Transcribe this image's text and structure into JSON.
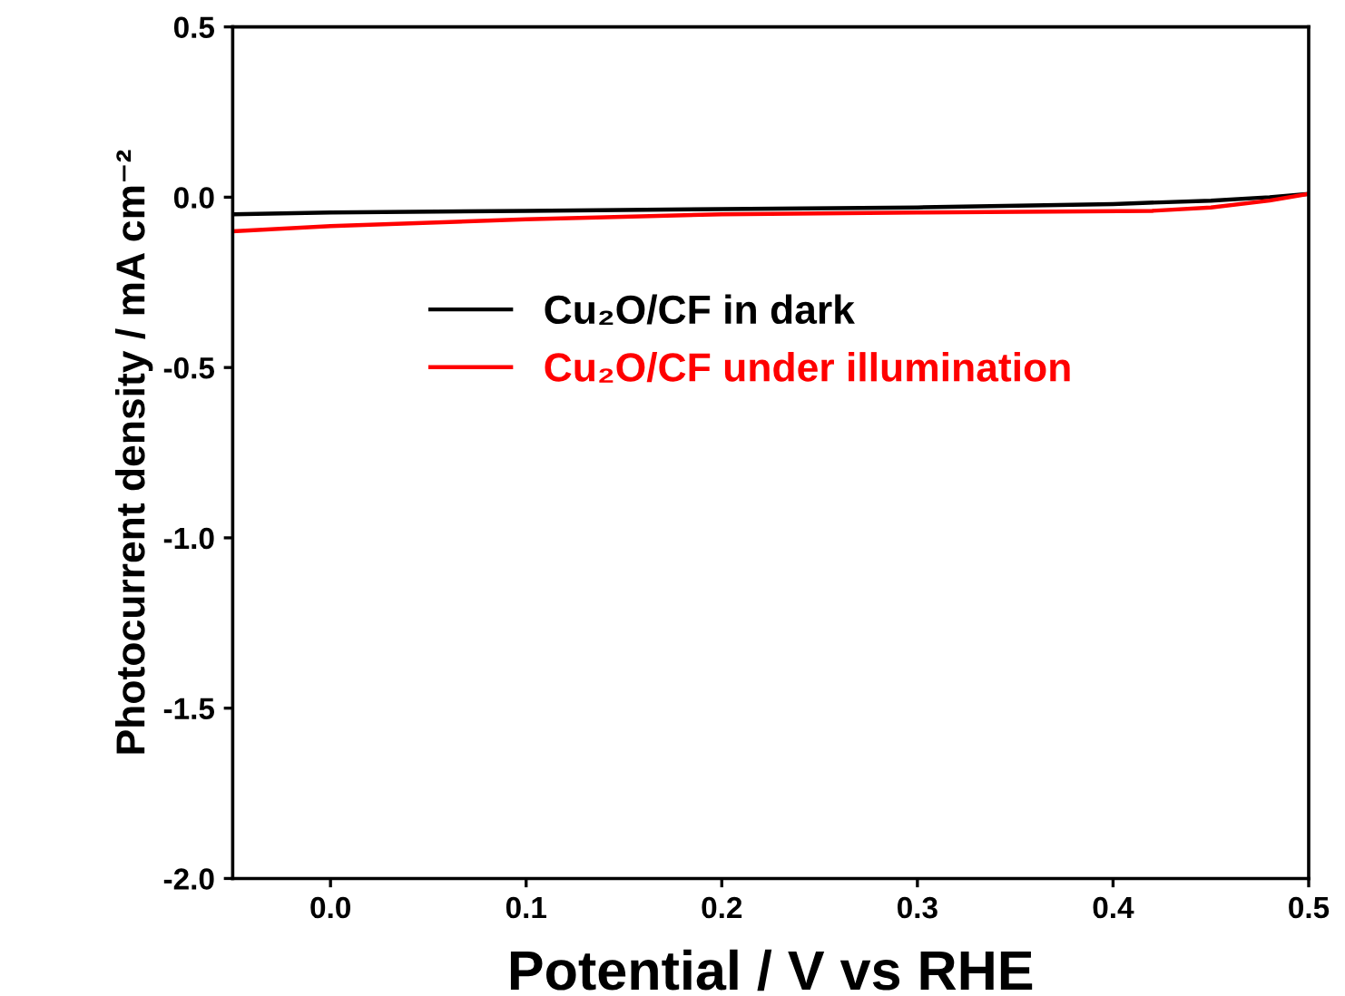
{
  "chart_data": {
    "type": "line",
    "xlabel": "Potential / V vs RHE",
    "ylabel": "Photocurrent density / mA cm⁻²",
    "xlim": [
      -0.05,
      0.5
    ],
    "xticks": [
      {
        "value": 0.0,
        "label": "0.0"
      },
      0.1,
      0.2,
      0.3,
      0.4,
      0.5
    ],
    "ylim": [
      -2.0,
      0.5
    ],
    "yticks": [
      {
        "value": -2.0,
        "label": "-2.0"
      },
      {
        "value": -1.5,
        "label": "-1.5"
      },
      {
        "value": -1.0,
        "label": "-1.0"
      },
      {
        "value": -0.5,
        "label": "-0.5"
      },
      {
        "value": 0.0,
        "label": "0.0"
      },
      0.5
    ],
    "grid": false,
    "legend": "left",
    "marker": "none",
    "line_style": "solid",
    "series": [
      {
        "name": "Cu₂O/CF in dark",
        "color": "#000000",
        "x": [
          -0.05,
          0.0,
          0.1,
          0.2,
          0.3,
          0.4,
          0.45,
          0.48,
          0.5
        ],
        "values": [
          -0.05,
          -0.045,
          -0.04,
          -0.035,
          -0.03,
          -0.02,
          -0.01,
          0.0,
          0.01
        ]
      },
      {
        "name": "Cu₂O/CF under illumination",
        "color": "#ff0000",
        "x": [
          -0.05,
          0.0,
          0.1,
          0.2,
          0.3,
          0.42,
          0.45,
          0.48,
          0.5
        ],
        "values": [
          -0.1,
          -0.085,
          -0.065,
          -0.05,
          -0.045,
          -0.04,
          -0.03,
          -0.01,
          0.01
        ]
      }
    ]
  }
}
